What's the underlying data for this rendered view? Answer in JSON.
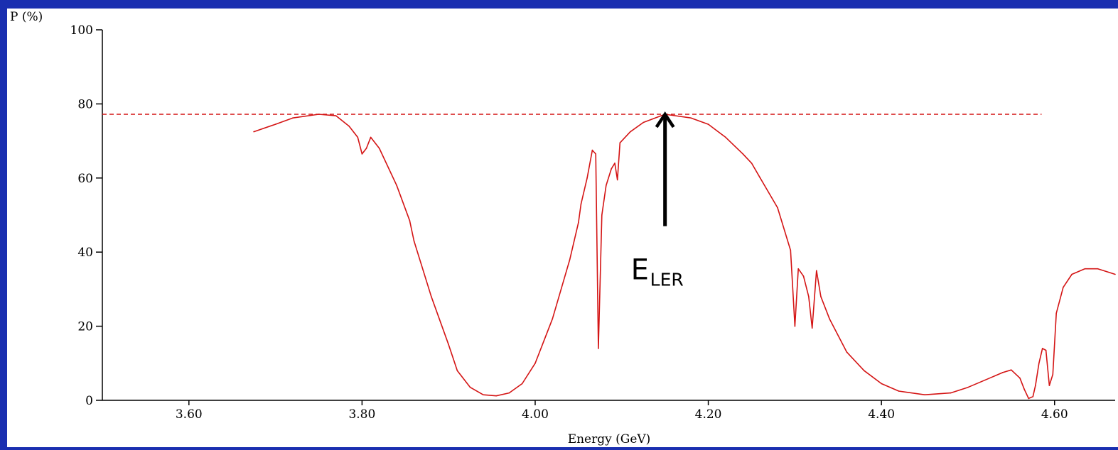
{
  "chart_data": {
    "type": "line",
    "title": "",
    "xlabel": "Energy (GeV)",
    "ylabel": "P (%)",
    "xlim": [
      3.5,
      4.67
    ],
    "ylim": [
      0,
      100
    ],
    "grid": false,
    "x_ticks": [
      3.6,
      3.8,
      4.0,
      4.2,
      4.4,
      4.6
    ],
    "x_tick_labels": [
      "3.60",
      "3.80",
      "4.00",
      "4.20",
      "4.40",
      "4.60"
    ],
    "y_ticks": [
      0,
      20,
      40,
      60,
      80,
      100
    ],
    "y_tick_labels": [
      "0",
      "20",
      "40",
      "60",
      "80",
      "100"
    ],
    "series": [
      {
        "color": "#d41414",
        "points": [
          [
            3.675,
            72.5
          ],
          [
            3.7,
            74.5
          ],
          [
            3.72,
            76.2
          ],
          [
            3.75,
            77.2
          ],
          [
            3.77,
            76.8
          ],
          [
            3.785,
            74.0
          ],
          [
            3.795,
            71.0
          ],
          [
            3.8,
            66.5
          ],
          [
            3.805,
            68.0
          ],
          [
            3.81,
            71.0
          ],
          [
            3.82,
            68.0
          ],
          [
            3.84,
            58.0
          ],
          [
            3.855,
            48.5
          ],
          [
            3.86,
            43.0
          ],
          [
            3.88,
            28.0
          ],
          [
            3.9,
            15.0
          ],
          [
            3.91,
            8.0
          ],
          [
            3.925,
            3.5
          ],
          [
            3.94,
            1.5
          ],
          [
            3.955,
            1.2
          ],
          [
            3.97,
            2.0
          ],
          [
            3.985,
            4.5
          ],
          [
            4.0,
            10.0
          ],
          [
            4.02,
            22.0
          ],
          [
            4.04,
            38.0
          ],
          [
            4.05,
            48.0
          ],
          [
            4.053,
            53.0
          ],
          [
            4.06,
            60.0
          ],
          [
            4.066,
            67.5
          ],
          [
            4.07,
            66.5
          ],
          [
            4.073,
            14.0
          ],
          [
            4.077,
            50.0
          ],
          [
            4.082,
            58.0
          ],
          [
            4.088,
            62.5
          ],
          [
            4.092,
            64.0
          ],
          [
            4.095,
            59.5
          ],
          [
            4.098,
            69.5
          ],
          [
            4.11,
            72.5
          ],
          [
            4.125,
            75.0
          ],
          [
            4.15,
            77.2
          ],
          [
            4.18,
            76.2
          ],
          [
            4.2,
            74.5
          ],
          [
            4.22,
            71.0
          ],
          [
            4.24,
            66.5
          ],
          [
            4.25,
            64.0
          ],
          [
            4.26,
            60.0
          ],
          [
            4.28,
            52.0
          ],
          [
            4.295,
            40.5
          ],
          [
            4.3,
            20.0
          ],
          [
            4.304,
            35.5
          ],
          [
            4.31,
            33.5
          ],
          [
            4.316,
            28.0
          ],
          [
            4.32,
            19.5
          ],
          [
            4.325,
            35.0
          ],
          [
            4.33,
            28.0
          ],
          [
            4.34,
            22.0
          ],
          [
            4.36,
            13.0
          ],
          [
            4.38,
            8.0
          ],
          [
            4.4,
            4.5
          ],
          [
            4.42,
            2.5
          ],
          [
            4.45,
            1.5
          ],
          [
            4.48,
            2.0
          ],
          [
            4.5,
            3.5
          ],
          [
            4.52,
            5.5
          ],
          [
            4.54,
            7.5
          ],
          [
            4.55,
            8.2
          ],
          [
            4.56,
            6.0
          ],
          [
            4.565,
            3.0
          ],
          [
            4.57,
            0.5
          ],
          [
            4.575,
            1.0
          ],
          [
            4.578,
            4.0
          ],
          [
            4.582,
            10.0
          ],
          [
            4.586,
            14.0
          ],
          [
            4.59,
            13.5
          ],
          [
            4.594,
            4.0
          ],
          [
            4.598,
            7.0
          ],
          [
            4.602,
            23.5
          ],
          [
            4.61,
            30.5
          ],
          [
            4.62,
            34.0
          ],
          [
            4.635,
            35.5
          ],
          [
            4.65,
            35.5
          ],
          [
            4.67,
            34.0
          ]
        ]
      }
    ],
    "reference_line": {
      "y": 77.2,
      "x_range": [
        3.5,
        4.585
      ],
      "color": "#d41414",
      "style": "dashed"
    },
    "annotation": {
      "text_main": "E",
      "text_sub": "LER",
      "arrow_x": 4.15,
      "arrow_from_y": 47,
      "arrow_to_y": 77.2,
      "color": "#000000"
    }
  }
}
